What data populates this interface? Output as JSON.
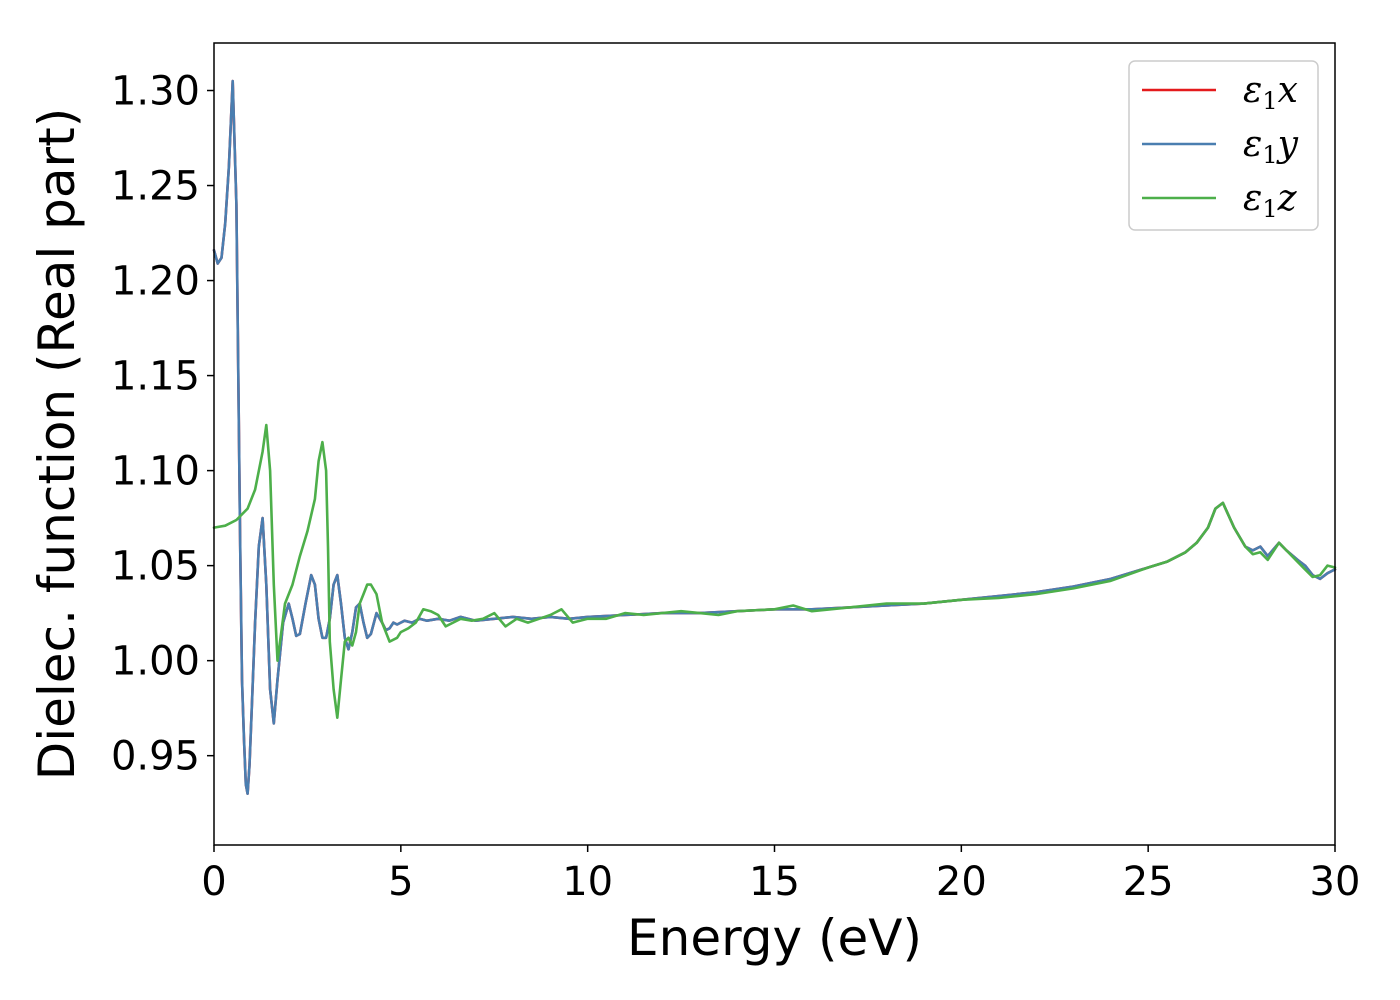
{
  "chart_data": {
    "type": "line",
    "xlabel": "Energy (eV)",
    "ylabel": "Dielec. function (Real part)",
    "xlim": [
      0,
      30
    ],
    "ylim": [
      0.903,
      1.325
    ],
    "xticks": [
      0,
      5,
      10,
      15,
      20,
      25,
      30
    ],
    "xtick_labels": [
      "0",
      "5",
      "10",
      "15",
      "20",
      "25",
      "30"
    ],
    "yticks": [
      0.95,
      1.0,
      1.05,
      1.1,
      1.15,
      1.2,
      1.25,
      1.3
    ],
    "ytick_labels": [
      "0.95",
      "1.00",
      "1.05",
      "1.10",
      "1.15",
      "1.20",
      "1.25",
      "1.30"
    ],
    "grid": false,
    "legend_position": "top-right",
    "series": [
      {
        "name": "ε₁x",
        "legend_main": "ε",
        "legend_sub": "1",
        "legend_var": "x",
        "color": "#e41a1c",
        "x": [
          0,
          0.1,
          0.2,
          0.3,
          0.4,
          0.5,
          0.6,
          0.7,
          0.75,
          0.8,
          0.85,
          0.9,
          0.95,
          1.0,
          1.1,
          1.2,
          1.3,
          1.4,
          1.5,
          1.6,
          1.7,
          1.85,
          2.0,
          2.1,
          2.2,
          2.3,
          2.45,
          2.6,
          2.7,
          2.8,
          2.9,
          3.0,
          3.1,
          3.2,
          3.3,
          3.4,
          3.5,
          3.6,
          3.7,
          3.8,
          3.9,
          4.0,
          4.1,
          4.2,
          4.35,
          4.5,
          4.6,
          4.7,
          4.8,
          4.9,
          5.0,
          5.1,
          5.3,
          5.5,
          5.7,
          6.0,
          6.3,
          6.6,
          7.0,
          7.5,
          8.0,
          8.5,
          9.0,
          9.5,
          10,
          11,
          12,
          13,
          14,
          15,
          16,
          17,
          18,
          19,
          20,
          21,
          22,
          23,
          24,
          25,
          25.5,
          26,
          26.3,
          26.6,
          26.8,
          27.0,
          27.3,
          27.6,
          27.8,
          28.0,
          28.2,
          28.5,
          28.7,
          29.0,
          29.2,
          29.4,
          29.6,
          29.8,
          30
        ],
        "y": [
          1.216,
          1.209,
          1.212,
          1.23,
          1.26,
          1.305,
          1.24,
          1.06,
          0.99,
          0.96,
          0.935,
          0.93,
          0.945,
          0.97,
          1.02,
          1.06,
          1.075,
          1.04,
          0.985,
          0.967,
          0.99,
          1.02,
          1.03,
          1.022,
          1.013,
          1.014,
          1.03,
          1.045,
          1.04,
          1.022,
          1.012,
          1.012,
          1.022,
          1.04,
          1.045,
          1.03,
          1.012,
          1.006,
          1.015,
          1.028,
          1.03,
          1.02,
          1.012,
          1.014,
          1.025,
          1.02,
          1.016,
          1.017,
          1.02,
          1.019,
          1.02,
          1.021,
          1.02,
          1.022,
          1.021,
          1.022,
          1.021,
          1.023,
          1.021,
          1.022,
          1.023,
          1.022,
          1.023,
          1.022,
          1.023,
          1.024,
          1.025,
          1.025,
          1.026,
          1.027,
          1.027,
          1.028,
          1.029,
          1.03,
          1.032,
          1.034,
          1.036,
          1.039,
          1.043,
          1.049,
          1.052,
          1.057,
          1.062,
          1.07,
          1.08,
          1.083,
          1.07,
          1.06,
          1.058,
          1.06,
          1.055,
          1.062,
          1.058,
          1.053,
          1.05,
          1.045,
          1.043,
          1.046,
          1.048
        ]
      },
      {
        "name": "ε₁y",
        "legend_main": "ε",
        "legend_sub": "1",
        "legend_var": "y",
        "color": "#4a7eb0",
        "x": [
          0,
          0.1,
          0.2,
          0.3,
          0.4,
          0.5,
          0.6,
          0.7,
          0.75,
          0.8,
          0.85,
          0.9,
          0.95,
          1.0,
          1.1,
          1.2,
          1.3,
          1.4,
          1.5,
          1.6,
          1.7,
          1.85,
          2.0,
          2.1,
          2.2,
          2.3,
          2.45,
          2.6,
          2.7,
          2.8,
          2.9,
          3.0,
          3.1,
          3.2,
          3.3,
          3.4,
          3.5,
          3.6,
          3.7,
          3.8,
          3.9,
          4.0,
          4.1,
          4.2,
          4.35,
          4.5,
          4.6,
          4.7,
          4.8,
          4.9,
          5.0,
          5.1,
          5.3,
          5.5,
          5.7,
          6.0,
          6.3,
          6.6,
          7.0,
          7.5,
          8.0,
          8.5,
          9.0,
          9.5,
          10,
          11,
          12,
          13,
          14,
          15,
          16,
          17,
          18,
          19,
          20,
          21,
          22,
          23,
          24,
          25,
          25.5,
          26,
          26.3,
          26.6,
          26.8,
          27.0,
          27.3,
          27.6,
          27.8,
          28.0,
          28.2,
          28.5,
          28.7,
          29.0,
          29.2,
          29.4,
          29.6,
          29.8,
          30
        ],
        "y": [
          1.216,
          1.209,
          1.212,
          1.23,
          1.26,
          1.305,
          1.24,
          1.06,
          0.99,
          0.96,
          0.935,
          0.93,
          0.945,
          0.97,
          1.02,
          1.06,
          1.075,
          1.04,
          0.985,
          0.967,
          0.99,
          1.02,
          1.03,
          1.022,
          1.013,
          1.014,
          1.03,
          1.045,
          1.04,
          1.022,
          1.012,
          1.012,
          1.022,
          1.04,
          1.045,
          1.03,
          1.012,
          1.006,
          1.015,
          1.028,
          1.03,
          1.02,
          1.012,
          1.014,
          1.025,
          1.02,
          1.016,
          1.017,
          1.02,
          1.019,
          1.02,
          1.021,
          1.02,
          1.022,
          1.021,
          1.022,
          1.021,
          1.023,
          1.021,
          1.022,
          1.023,
          1.022,
          1.023,
          1.022,
          1.023,
          1.024,
          1.025,
          1.025,
          1.026,
          1.027,
          1.027,
          1.028,
          1.029,
          1.03,
          1.032,
          1.034,
          1.036,
          1.039,
          1.043,
          1.049,
          1.052,
          1.057,
          1.062,
          1.07,
          1.08,
          1.083,
          1.07,
          1.06,
          1.058,
          1.06,
          1.055,
          1.062,
          1.058,
          1.053,
          1.05,
          1.045,
          1.043,
          1.046,
          1.048
        ]
      },
      {
        "name": "ε₁z",
        "legend_main": "ε",
        "legend_sub": "1",
        "legend_var": "z",
        "color": "#4daf4a",
        "x": [
          0,
          0.3,
          0.6,
          0.9,
          1.1,
          1.3,
          1.4,
          1.5,
          1.6,
          1.7,
          1.8,
          1.9,
          2.1,
          2.3,
          2.5,
          2.7,
          2.8,
          2.9,
          3.0,
          3.05,
          3.1,
          3.2,
          3.3,
          3.4,
          3.5,
          3.6,
          3.7,
          3.8,
          3.9,
          4.0,
          4.1,
          4.2,
          4.35,
          4.5,
          4.7,
          4.9,
          5.0,
          5.2,
          5.4,
          5.6,
          5.8,
          6.0,
          6.2,
          6.4,
          6.6,
          6.9,
          7.2,
          7.5,
          7.8,
          8.1,
          8.4,
          8.7,
          9.0,
          9.3,
          9.6,
          10.0,
          10.5,
          11,
          11.5,
          12,
          12.5,
          13,
          13.5,
          14,
          15,
          15.5,
          16,
          17,
          18,
          19,
          20,
          21,
          22,
          23,
          24,
          25,
          25.5,
          26,
          26.3,
          26.6,
          26.8,
          27.0,
          27.3,
          27.6,
          27.8,
          28.0,
          28.2,
          28.5,
          28.7,
          29.0,
          29.2,
          29.4,
          29.6,
          29.8,
          30
        ],
        "y": [
          1.07,
          1.071,
          1.074,
          1.08,
          1.09,
          1.11,
          1.124,
          1.1,
          1.04,
          1.0,
          1.015,
          1.03,
          1.04,
          1.055,
          1.068,
          1.085,
          1.105,
          1.115,
          1.1,
          1.06,
          1.01,
          0.985,
          0.97,
          0.99,
          1.01,
          1.012,
          1.008,
          1.015,
          1.03,
          1.035,
          1.04,
          1.04,
          1.035,
          1.02,
          1.01,
          1.012,
          1.015,
          1.017,
          1.02,
          1.027,
          1.026,
          1.024,
          1.018,
          1.02,
          1.022,
          1.021,
          1.022,
          1.025,
          1.018,
          1.022,
          1.02,
          1.022,
          1.024,
          1.027,
          1.02,
          1.022,
          1.022,
          1.025,
          1.024,
          1.025,
          1.026,
          1.025,
          1.024,
          1.026,
          1.027,
          1.029,
          1.026,
          1.028,
          1.03,
          1.03,
          1.032,
          1.033,
          1.035,
          1.038,
          1.042,
          1.049,
          1.052,
          1.057,
          1.062,
          1.07,
          1.08,
          1.083,
          1.07,
          1.06,
          1.056,
          1.057,
          1.053,
          1.062,
          1.058,
          1.052,
          1.048,
          1.044,
          1.045,
          1.05,
          1.049
        ]
      }
    ]
  }
}
